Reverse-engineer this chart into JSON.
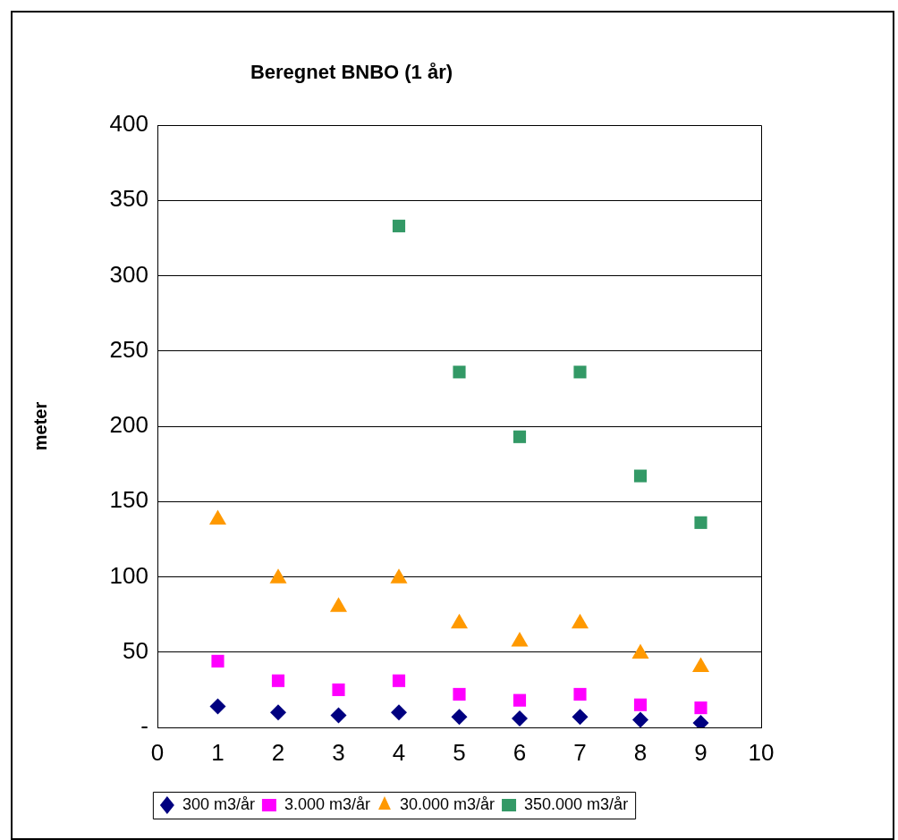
{
  "chart_data": {
    "type": "scatter",
    "title": "Beregnet BNBO (1 år)",
    "ylabel": "meter",
    "x": [
      1,
      2,
      3,
      4,
      5,
      6,
      7,
      8,
      9
    ],
    "series": [
      {
        "name": "300 m3/år",
        "color": "#000080",
        "marker": "diamond",
        "values": [
          14,
          10,
          8,
          10,
          7,
          6,
          7,
          5,
          3
        ]
      },
      {
        "name": "3.000 m3/år",
        "color": "#ff00ff",
        "marker": "square",
        "values": [
          44,
          31,
          25,
          31,
          22,
          18,
          22,
          15,
          13
        ]
      },
      {
        "name": "30.000 m3/år",
        "color": "#ff9900",
        "marker": "triangle",
        "values": [
          138,
          99,
          80,
          99,
          69,
          57,
          69,
          49,
          40
        ]
      },
      {
        "name": "350.000 m3/år",
        "color": "#339966",
        "marker": "square",
        "values": [
          null,
          null,
          null,
          333,
          236,
          193,
          236,
          167,
          136
        ]
      }
    ],
    "xlim": [
      0,
      10
    ],
    "xticks": [
      0,
      1,
      2,
      3,
      4,
      5,
      6,
      7,
      8,
      9,
      10
    ],
    "ylim": [
      0,
      400
    ],
    "yticks": [
      {
        "value": 0,
        "label": "-"
      },
      50,
      100,
      150,
      200,
      250,
      300,
      350,
      400
    ],
    "grid": "y",
    "legend": "bottom"
  }
}
